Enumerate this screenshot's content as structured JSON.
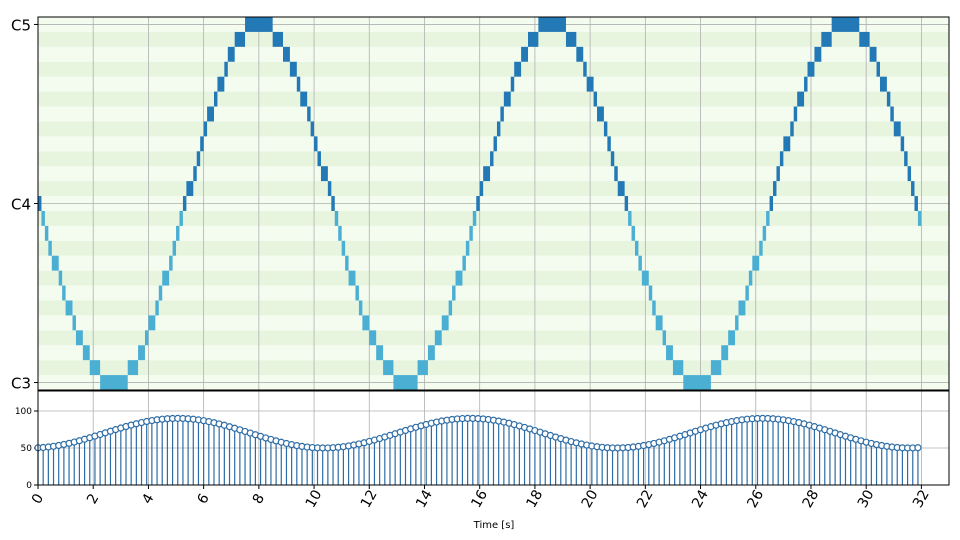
{
  "chart_data": [
    {
      "type": "piano-roll",
      "y_tick_labels": [
        "C3",
        "C4",
        "C5"
      ],
      "y_tick_pitches": [
        48,
        60,
        72
      ],
      "ylim_pitch": [
        47.5,
        72.5
      ],
      "xlim": [
        0,
        33
      ],
      "x_ticks": [
        0,
        2,
        4,
        6,
        8,
        10,
        12,
        14,
        16,
        18,
        20,
        22,
        24,
        26,
        28,
        30,
        32
      ],
      "grid": true,
      "note_color_light": "#4bafd4",
      "note_color_dark": "#2279b6",
      "lane_colors": [
        "#f4fbef",
        "#e7f5df"
      ],
      "notes": {
        "description_free": true,
        "period_s": 10.6,
        "start_s": 0,
        "end_s": 32,
        "note_duration_s": 0.125,
        "pitch_center": 60,
        "pitch_amplitude": 12,
        "phase": "sine_starting_downward"
      }
    },
    {
      "type": "stem-velocity",
      "xlabel": "Time [s]",
      "y_ticks": [
        0,
        50,
        100
      ],
      "ylim": [
        0,
        127
      ],
      "xlim": [
        0,
        33
      ],
      "grid": true,
      "stem_color": "#2d6ca5",
      "velocity_center": 70,
      "velocity_amplitude": 20,
      "velocity_period_s": 10.6
    }
  ],
  "axis": {
    "xlabel": "Time [s]",
    "x_tick_labels": [
      "0",
      "2",
      "4",
      "6",
      "8",
      "10",
      "12",
      "14",
      "16",
      "18",
      "20",
      "22",
      "24",
      "26",
      "28",
      "30",
      "32"
    ],
    "vel_tick_labels": [
      "0",
      "50",
      "100"
    ],
    "pitch_tick_labels": [
      "C3",
      "C4",
      "C5"
    ]
  }
}
